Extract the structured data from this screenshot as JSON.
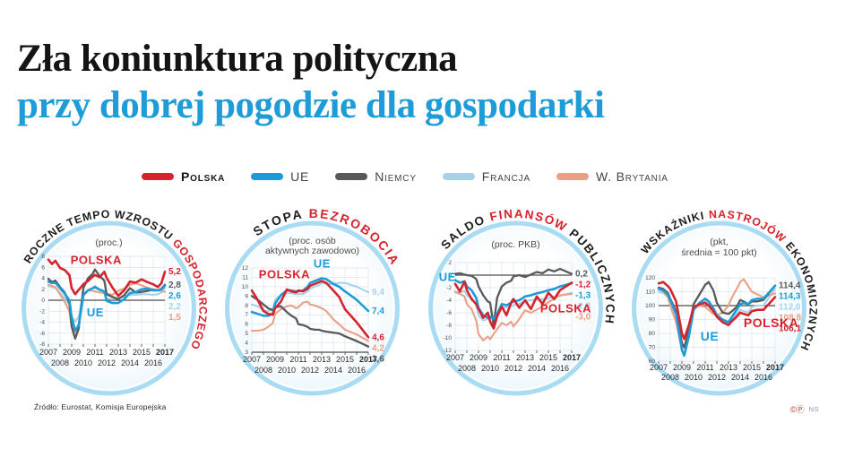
{
  "page": {
    "title_line1": "Zła koniunktura polityczna",
    "title_line2": "przy dobrej pogodzie dla gospodarki",
    "title_line2_color": "#1e9cd7",
    "source": "Źródło: Eurostat, Komisja Europejska",
    "credit_marks": "©Ⓟ",
    "credit": "NS"
  },
  "colors": {
    "polska": "#d6232e",
    "ue": "#1b9cd9",
    "niemcy": "#58595b",
    "francja": "#a9d2e8",
    "brytania": "#e9a185",
    "ring": "#a9dcf3",
    "dark": "#1d1d1b",
    "red": "#d6232e",
    "grid": "#d9e4eb",
    "axis_text": "#4a4a4a",
    "year_text": "#2b2b2b"
  },
  "legend": [
    {
      "key": "polska",
      "label": "Polska",
      "bold": true
    },
    {
      "key": "ue",
      "label": "UE",
      "bold": false
    },
    {
      "key": "niemcy",
      "label": "Niemcy",
      "bold": false
    },
    {
      "key": "francja",
      "label": "Francja",
      "bold": false
    },
    {
      "key": "brytania",
      "label": "W. Brytania",
      "bold": false
    }
  ],
  "chart_data": [
    {
      "id": "roczne-tempo-wzrostu-gospodarczego",
      "type": "line",
      "title_segments": [
        {
          "text": "ROCZNE TEMPO WZROSTU ",
          "c": "dark"
        },
        {
          "text": "GOSPODARCZEGO",
          "c": "red"
        }
      ],
      "subtitle_lines": [
        "(proc.)"
      ],
      "ylim": [
        -8,
        8
      ],
      "yticks": [
        "8",
        "6",
        "4",
        "2",
        "0",
        "-2",
        "-4",
        "-6",
        "-8"
      ],
      "baseline": 0,
      "xlim": [
        2007,
        2017
      ],
      "xlabels_row1": [
        "2007",
        "2009",
        "2011",
        "2013",
        "2015",
        "2017"
      ],
      "xlabels_row2": [
        "2008",
        "2010",
        "2012",
        "2014",
        "2016"
      ],
      "x": [
        2007,
        2007.3,
        2007.6,
        2008,
        2008.4,
        2008.8,
        2009,
        2009.3,
        2009.6,
        2010,
        2010.4,
        2010.8,
        2011,
        2011.4,
        2011.8,
        2012,
        2012.5,
        2013,
        2013.5,
        2014,
        2014.5,
        2015,
        2015.5,
        2016,
        2016.4,
        2016.7,
        2017
      ],
      "series": [
        {
          "key": "polska",
          "name": "Polska",
          "y": [
            7.4,
            6.6,
            7.2,
            5.9,
            5.5,
            4.6,
            2.2,
            1.1,
            1.9,
            2.9,
            3.5,
            4.3,
            4.6,
            4.2,
            5.2,
            4.1,
            2.3,
            0.8,
            1.8,
            3.4,
            3.2,
            3.8,
            3.3,
            2.9,
            2.4,
            3.1,
            5.2
          ]
        },
        {
          "key": "ue",
          "name": "UE",
          "y": [
            3.4,
            3.1,
            3.2,
            2.2,
            1.2,
            0.0,
            -3.2,
            -5.5,
            -4.6,
            0.9,
            1.8,
            2.2,
            2.4,
            1.9,
            1.6,
            -0.1,
            -0.5,
            -0.5,
            0.2,
            1.3,
            1.5,
            2.0,
            2.1,
            1.8,
            1.8,
            2.0,
            2.6
          ]
        },
        {
          "key": "niemcy",
          "name": "Niemcy",
          "y": [
            3.9,
            3.3,
            3.6,
            2.4,
            1.4,
            -0.5,
            -4.8,
            -7.0,
            -5.2,
            2.2,
            4.0,
            4.8,
            5.6,
            4.4,
            3.6,
            1.1,
            0.6,
            0.2,
            0.9,
            2.2,
            1.4,
            1.5,
            1.7,
            1.9,
            1.8,
            2.1,
            2.8
          ]
        },
        {
          "key": "francja",
          "name": "Francja",
          "y": [
            2.6,
            2.4,
            2.3,
            1.3,
            0.4,
            -0.9,
            -2.9,
            -3.9,
            -3.0,
            1.3,
            1.8,
            2.2,
            2.6,
            2.0,
            1.6,
            0.3,
            0.2,
            0.5,
            0.7,
            1.0,
            1.0,
            1.1,
            1.1,
            1.0,
            1.1,
            1.4,
            2.2
          ]
        },
        {
          "key": "brytania",
          "name": "W. Brytania",
          "y": [
            2.8,
            2.6,
            2.4,
            1.1,
            -0.3,
            -2.0,
            -4.9,
            -6.0,
            -4.2,
            1.1,
            1.8,
            1.7,
            1.6,
            1.4,
            1.3,
            1.2,
            1.0,
            1.7,
            2.1,
            2.8,
            3.1,
            2.7,
            2.3,
            2.0,
            1.8,
            1.7,
            1.5
          ]
        }
      ],
      "end_labels": [
        {
          "value": "5,2",
          "key": "polska"
        },
        {
          "value": "2,8",
          "key": "niemcy"
        },
        {
          "value": "2,6",
          "key": "ue"
        },
        {
          "value": "2,2",
          "key": "francja"
        },
        {
          "value": "1,5",
          "key": "brytania"
        }
      ],
      "annotations": [
        {
          "text": "POLSKA",
          "key": "polska",
          "ax": 2008.9,
          "av": 6.6,
          "size": 13
        },
        {
          "text": "UE",
          "key": "ue",
          "ax": 2010.3,
          "av": -2.9,
          "size": 13
        }
      ]
    },
    {
      "id": "stopa-bezrobocia",
      "type": "line",
      "title_segments": [
        {
          "text": "STOPA ",
          "c": "dark"
        },
        {
          "text": "BEZROBOCIA",
          "c": "red"
        }
      ],
      "subtitle_lines": [
        "(proc. osób",
        "aktywnych zawodowo)"
      ],
      "ylim": [
        3,
        12
      ],
      "yticks": [
        "12",
        "11",
        "10",
        "9",
        "8",
        "7",
        "6",
        "5",
        "4",
        "3"
      ],
      "baseline": 3,
      "xlim": [
        2007,
        2017
      ],
      "xlabels_row1": [
        "2007",
        "2009",
        "2011",
        "2013",
        "2015",
        "2017"
      ],
      "xlabels_row2": [
        "2008",
        "2010",
        "2012",
        "2014",
        "2016"
      ],
      "x": [
        2007,
        2007.5,
        2008,
        2008.4,
        2008.8,
        2009,
        2009.5,
        2010,
        2010.4,
        2010.8,
        2011,
        2011.4,
        2011.8,
        2012,
        2012.4,
        2012.8,
        2013,
        2013.4,
        2014,
        2014.5,
        2015,
        2016,
        2017
      ],
      "series": [
        {
          "key": "polska",
          "name": "Polska",
          "y": [
            9.6,
            8.6,
            7.4,
            7.1,
            7.0,
            7.7,
            8.4,
            9.7,
            9.5,
            9.4,
            9.6,
            9.5,
            9.8,
            10.1,
            10.3,
            10.5,
            10.6,
            10.4,
            9.6,
            8.9,
            7.6,
            6.2,
            4.6
          ]
        },
        {
          "key": "ue",
          "name": "UE",
          "y": [
            7.3,
            7.1,
            6.9,
            6.9,
            7.1,
            8.2,
            9.1,
            9.6,
            9.6,
            9.5,
            9.5,
            9.6,
            10.0,
            10.4,
            10.6,
            10.8,
            10.9,
            10.8,
            10.3,
            10.0,
            9.5,
            8.6,
            7.4
          ]
        },
        {
          "key": "niemcy",
          "name": "Niemcy",
          "y": [
            9.0,
            8.6,
            8.1,
            7.7,
            7.5,
            7.8,
            7.9,
            7.3,
            6.9,
            6.6,
            6.0,
            5.9,
            5.7,
            5.5,
            5.4,
            5.4,
            5.3,
            5.2,
            5.1,
            5.0,
            4.7,
            4.2,
            3.6
          ]
        },
        {
          "key": "francja",
          "name": "Francja",
          "y": [
            8.1,
            7.9,
            7.5,
            7.4,
            7.6,
            8.6,
            9.1,
            9.3,
            9.3,
            9.2,
            9.2,
            9.2,
            9.5,
            9.8,
            10.0,
            10.2,
            10.4,
            10.3,
            10.3,
            10.4,
            10.4,
            10.0,
            9.4
          ]
        },
        {
          "key": "brytania",
          "name": "W. Brytania",
          "y": [
            5.3,
            5.3,
            5.4,
            5.7,
            6.1,
            7.1,
            7.6,
            7.9,
            8.0,
            7.7,
            7.8,
            8.3,
            8.4,
            8.1,
            8.0,
            7.8,
            7.7,
            7.4,
            6.5,
            6.0,
            5.4,
            4.9,
            4.2
          ]
        }
      ],
      "end_labels": [
        {
          "value": "9,4",
          "key": "francja"
        },
        {
          "value": "7,4",
          "key": "ue"
        },
        {
          "value": "4,6",
          "key": "polska"
        },
        {
          "value": "4,2",
          "key": "brytania"
        },
        {
          "value": "3,6",
          "key": "niemcy"
        }
      ],
      "annotations": [
        {
          "text": "POLSKA",
          "key": "polska",
          "ax": 2007.6,
          "av": 10.9,
          "size": 13
        },
        {
          "text": "UE",
          "key": "ue",
          "ax": 2012.3,
          "av": 12.05,
          "size": 13
        }
      ]
    },
    {
      "id": "saldo-finansow-publicznych",
      "type": "line",
      "title_segments": [
        {
          "text": "SALDO ",
          "c": "dark"
        },
        {
          "text": "FINANSÓW",
          "c": "red"
        },
        {
          "text": " PUBLICZNYCH",
          "c": "dark"
        }
      ],
      "subtitle_lines": [
        "(proc. PKB)"
      ],
      "ylim": [
        -12,
        2
      ],
      "yticks": [
        "2",
        "0",
        "-2",
        "-4",
        "-6",
        "-8",
        "-10",
        "-12"
      ],
      "baseline": 0,
      "xlim": [
        2007,
        2017
      ],
      "xlabels_row1": [
        "2007",
        "2009",
        "2011",
        "2013",
        "2015",
        "2017"
      ],
      "xlabels_row2": [
        "2008",
        "2010",
        "2012",
        "2014",
        "2016"
      ],
      "x": [
        2007,
        2007.4,
        2007.8,
        2008,
        2008.4,
        2008.8,
        2009,
        2009.4,
        2009.8,
        2010,
        2010.3,
        2010.6,
        2011,
        2011.4,
        2011.8,
        2012,
        2012.5,
        2013,
        2013.5,
        2014,
        2014.5,
        2015,
        2015.5,
        2016,
        2017
      ],
      "series": [
        {
          "key": "polska",
          "name": "Polska",
          "y": [
            -1.4,
            -2.6,
            -1.0,
            -2.4,
            -3.8,
            -4.6,
            -5.4,
            -6.8,
            -6.0,
            -7.4,
            -8.5,
            -6.6,
            -5.0,
            -6.4,
            -4.4,
            -3.8,
            -5.2,
            -4.0,
            -5.4,
            -3.4,
            -4.6,
            -2.8,
            -3.8,
            -2.4,
            -1.2
          ]
        },
        {
          "key": "ue",
          "name": "UE",
          "y": [
            -0.8,
            -1.2,
            -1.0,
            -1.8,
            -2.4,
            -3.6,
            -5.2,
            -6.4,
            -6.8,
            -6.6,
            -7.0,
            -6.2,
            -4.6,
            -4.8,
            -4.4,
            -4.2,
            -4.0,
            -3.4,
            -3.2,
            -2.9,
            -2.7,
            -2.4,
            -2.2,
            -1.8,
            -1.3
          ]
        },
        {
          "key": "niemcy",
          "name": "Niemcy",
          "y": [
            0.2,
            0.3,
            0.1,
            0.0,
            -0.1,
            -0.6,
            -1.8,
            -3.2,
            -4.2,
            -4.4,
            -8.0,
            -3.6,
            -1.8,
            -1.2,
            -0.9,
            -0.2,
            0.0,
            -0.3,
            0.1,
            0.5,
            0.3,
            0.9,
            0.6,
            1.0,
            0.2
          ]
        },
        {
          "key": "francja",
          "name": "Francja",
          "y": [
            -2.6,
            -2.8,
            -2.5,
            -3.2,
            -3.6,
            -4.8,
            -6.4,
            -7.2,
            -7.0,
            -6.9,
            -6.6,
            -6.2,
            -5.2,
            -5.1,
            -4.9,
            -4.8,
            -4.6,
            -4.1,
            -4.0,
            -3.9,
            -3.8,
            -3.7,
            -3.5,
            -3.3,
            -2.8
          ]
        },
        {
          "key": "brytania",
          "name": "W. Brytania",
          "y": [
            -2.7,
            -3.0,
            -3.4,
            -4.6,
            -5.4,
            -7.2,
            -9.4,
            -10.4,
            -9.8,
            -10.2,
            -9.4,
            -8.6,
            -7.6,
            -8.0,
            -7.4,
            -8.2,
            -7.0,
            -5.6,
            -6.0,
            -5.5,
            -5.0,
            -4.3,
            -3.8,
            -3.2,
            -3.0
          ]
        }
      ],
      "end_labels": [
        {
          "value": "0,2",
          "key": "niemcy"
        },
        {
          "value": "-1,2",
          "key": "polska"
        },
        {
          "value": "-1,3",
          "key": "ue"
        },
        {
          "value": "-2,8",
          "key": "francja"
        },
        {
          "value": "-3,0",
          "key": "brytania"
        }
      ],
      "annotations": [
        {
          "text": "UE",
          "key": "ue",
          "ax": 2005.6,
          "av": -0.9,
          "size": 13
        },
        {
          "text": "POLSKA",
          "key": "polska",
          "ax": 2014.3,
          "av": -5.9,
          "size": 13
        }
      ]
    },
    {
      "id": "wskazniki-nastrojow-ekonomicznych",
      "type": "line",
      "title_segments": [
        {
          "text": "WSKAŹNIKI ",
          "c": "dark"
        },
        {
          "text": "NASTROJÓW",
          "c": "red"
        },
        {
          "text": " EKONOMICZNYCH",
          "c": "dark"
        }
      ],
      "subtitle_lines": [
        "(pkt,",
        "średnia = 100 pkt)"
      ],
      "ylim": [
        60,
        120
      ],
      "yticks": [
        "120",
        "110",
        "100",
        "90",
        "80",
        "70",
        "60"
      ],
      "baseline": 100,
      "xlim": [
        2007,
        2017
      ],
      "xlabels_row1": [
        "2007",
        "2009",
        "2011",
        "2013",
        "2015",
        "2017"
      ],
      "xlabels_row2": [
        "2008",
        "2010",
        "2012",
        "2014",
        "2016"
      ],
      "x": [
        2007,
        2007.4,
        2007.8,
        2008,
        2008.5,
        2009,
        2009.2,
        2009.6,
        2010,
        2010.5,
        2011,
        2011.3,
        2011.7,
        2012,
        2012.5,
        2013,
        2013.3,
        2013.7,
        2014,
        2014.3,
        2014.7,
        2015,
        2015.5,
        2016,
        2017
      ],
      "series": [
        {
          "key": "polska",
          "name": "Polska",
          "y": [
            116,
            117,
            114,
            112,
            103,
            80,
            76,
            86,
            99,
            101,
            102,
            100,
            96,
            92,
            88,
            86,
            89,
            92,
            95,
            94,
            93,
            96,
            97,
            97,
            106.1
          ]
        },
        {
          "key": "ue",
          "name": "UE",
          "y": [
            112,
            111,
            108,
            104,
            94,
            68,
            64,
            78,
            97,
            102,
            105,
            103,
            98,
            93,
            90,
            88,
            92,
            97,
            101,
            102,
            101,
            104,
            105,
            105,
            114.3
          ]
        },
        {
          "key": "niemcy",
          "name": "Niemcy",
          "y": [
            113,
            112,
            109,
            105,
            96,
            73,
            70,
            82,
            101,
            108,
            115,
            117,
            111,
            102,
            95,
            94,
            96,
            99,
            104,
            103,
            101,
            103,
            103,
            104,
            114.4
          ]
        },
        {
          "key": "francja",
          "name": "Francja",
          "y": [
            110,
            109,
            106,
            102,
            92,
            71,
            69,
            80,
            97,
            101,
            103,
            101,
            96,
            92,
            89,
            88,
            91,
            94,
            97,
            96,
            95,
            99,
            100,
            100,
            112.0
          ]
        },
        {
          "key": "brytania",
          "name": "W. Brytania",
          "y": [
            112,
            110,
            106,
            100,
            88,
            68,
            65,
            80,
            98,
            100,
            99,
            97,
            94,
            93,
            95,
            100,
            106,
            112,
            117,
            119,
            114,
            110,
            108,
            106,
            108.8
          ]
        }
      ],
      "end_labels": [
        {
          "value": "114,4",
          "key": "niemcy"
        },
        {
          "value": "114,3",
          "key": "ue"
        },
        {
          "value": "112,0",
          "key": "francja"
        },
        {
          "value": "108,8",
          "key": "brytania"
        },
        {
          "value": "106,1",
          "key": "polska"
        }
      ],
      "annotations": [
        {
          "text": "UE",
          "key": "ue",
          "ax": 2010.6,
          "av": 75,
          "size": 14
        },
        {
          "text": "POLSKA",
          "key": "polska",
          "ax": 2014.3,
          "av": 84.5,
          "size": 14
        }
      ]
    }
  ]
}
